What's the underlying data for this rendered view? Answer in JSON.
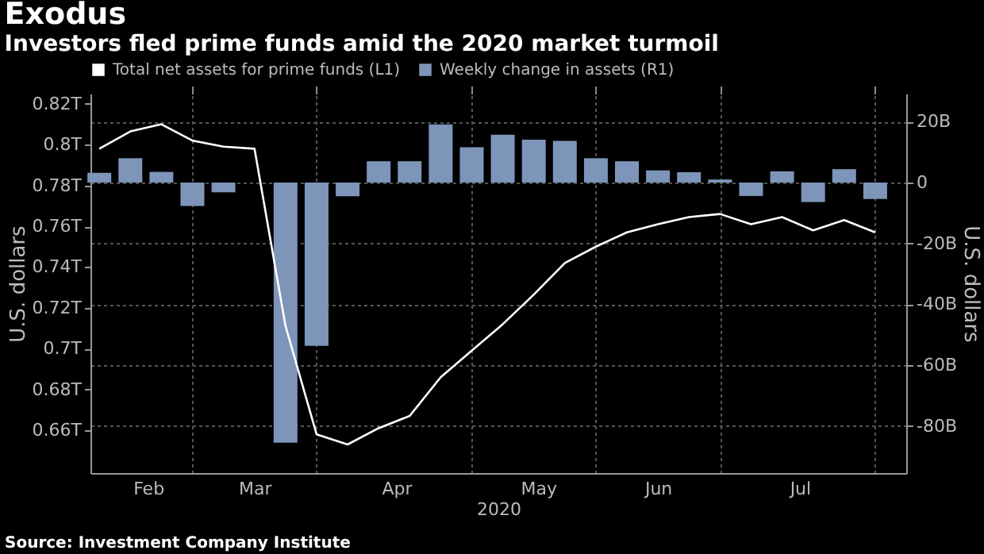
{
  "chart_data": {
    "type": "bar",
    "title": "Exodus",
    "subtitle": "Investors fled prime funds amid the 2020 market turmoil",
    "xlabel": "2020",
    "ylabel": "U.S. dollars",
    "y2label": "U.S. dollars",
    "x": [
      "2020-02-12",
      "2020-02-19",
      "2020-02-26",
      "2020-03-04",
      "2020-03-11",
      "2020-03-18",
      "2020-03-25",
      "2020-04-01",
      "2020-04-08",
      "2020-04-15",
      "2020-04-22",
      "2020-04-29",
      "2020-05-06",
      "2020-05-13",
      "2020-05-20",
      "2020-05-27",
      "2020-06-03",
      "2020-06-10",
      "2020-06-17",
      "2020-06-24",
      "2020-07-01",
      "2020-07-08",
      "2020-07-15",
      "2020-07-22",
      "2020-07-29",
      "2020-08-05"
    ],
    "series": [
      {
        "name": "Total net assets for prime funds (L1)",
        "type": "line",
        "color": "#ffffff",
        "values": [
          0.798,
          0.8065,
          0.81,
          0.802,
          0.799,
          0.798,
          0.711,
          0.658,
          0.653,
          0.661,
          0.667,
          0.686,
          0.699,
          0.712,
          0.7265,
          0.742,
          0.75,
          0.757,
          0.761,
          0.7645,
          0.766,
          0.761,
          0.7645,
          0.758,
          0.763,
          0.757
        ]
      },
      {
        "name": "Weekly change in assets (R1)",
        "axis": "y2",
        "color": "#7d95b9",
        "values": [
          3.2,
          8.0,
          3.5,
          -7.7,
          -3.2,
          0,
          -85.4,
          -53.6,
          -4.5,
          7.0,
          7.0,
          19.1,
          11.6,
          15.7,
          14.1,
          13.7,
          8.0,
          7.0,
          4.0,
          3.4,
          1.0,
          -4.4,
          3.7,
          -6.4,
          4.4,
          -5.4
        ]
      }
    ],
    "xlim": [
      "2020-02-10",
      "2020-08-12"
    ],
    "xticks": [
      {
        "value": "2020-02-23",
        "label": "Feb"
      },
      {
        "value": "2020-03-04",
        "label": null
      },
      {
        "value": "2020-03-18",
        "label": "Mar"
      },
      {
        "value": "2020-04-01",
        "label": null
      },
      {
        "value": "2020-04-19",
        "label": "Apr"
      },
      {
        "value": "2020-05-06",
        "label": null
      },
      {
        "value": "2020-05-21",
        "label": "May"
      },
      {
        "value": "2020-06-03",
        "label": null
      },
      {
        "value": "2020-06-17",
        "label": "Jun"
      },
      {
        "value": "2020-07-01",
        "label": null
      },
      {
        "value": "2020-07-19",
        "label": "Jul"
      },
      {
        "value": "2020-08-05",
        "label": null
      }
    ],
    "ylim": [
      0.639,
      0.825
    ],
    "yticks": [
      {
        "value": 0.66,
        "label": "0.66T"
      },
      {
        "value": 0.68,
        "label": "0.68T"
      },
      {
        "value": 0.7,
        "label": "0.7T"
      },
      {
        "value": 0.72,
        "label": "0.72T"
      },
      {
        "value": 0.74,
        "label": "0.74T"
      },
      {
        "value": 0.76,
        "label": "0.76T"
      },
      {
        "value": 0.78,
        "label": "0.78T"
      },
      {
        "value": 0.8,
        "label": "0.8T"
      },
      {
        "value": 0.82,
        "label": "0.82T"
      }
    ],
    "y2lim": [
      -95.4,
      29.2
    ],
    "y2ticks": [
      {
        "value": -80,
        "label": "-80B"
      },
      {
        "value": -60,
        "label": "-60B"
      },
      {
        "value": -40,
        "label": "-40B"
      },
      {
        "value": -20,
        "label": "-20B"
      },
      0,
      {
        "value": 20,
        "label": "20B"
      }
    ],
    "grid": true,
    "legend": "top left",
    "annotations": [
      "Source: Investment Company Institute"
    ]
  }
}
